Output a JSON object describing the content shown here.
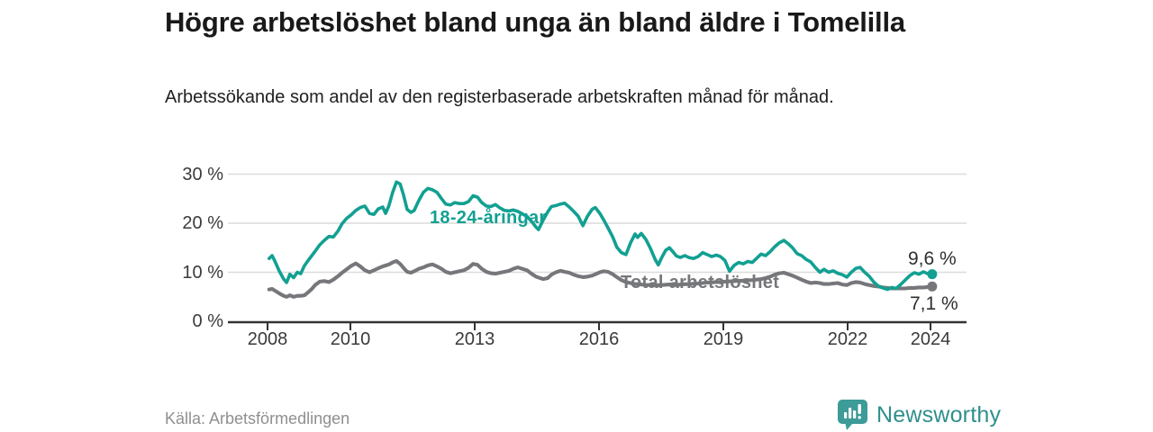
{
  "chart_data": {
    "type": "line",
    "title": "Högre arbetslöshet bland unga än bland äldre i Tomelilla",
    "subtitle": "Arbetssökande som andel av den registerbaserade arbetskraften månad för månad.",
    "source": "Källa: Arbetsförmedlingen",
    "grid": "horizontal",
    "legend": "inline-labels",
    "y_axis": {
      "unit": "%",
      "range": [
        0,
        31
      ],
      "tick_values": [
        0,
        10,
        20,
        30
      ],
      "tick_labels": [
        "0 %",
        "10 %",
        "20 %",
        "30 %"
      ]
    },
    "x_axis": {
      "range": [
        2007.9,
        2024.9
      ],
      "ticks": [
        2008,
        2010,
        2013,
        2016,
        2019,
        2022,
        2024
      ]
    },
    "style": {
      "grid_color": "#dcdcdc",
      "axis_color": "#333333",
      "text_color": "#3a3a3a"
    },
    "series": [
      {
        "name": "18-24-åringar",
        "color": "#12a092",
        "end_value": 9.6,
        "end_label": "9,6 %",
        "points": [
          [
            2008.04,
            12.8
          ],
          [
            2008.11,
            13.4
          ],
          [
            2008.17,
            12.4
          ],
          [
            2008.28,
            10.3
          ],
          [
            2008.39,
            8.6
          ],
          [
            2008.46,
            7.9
          ],
          [
            2008.54,
            9.6
          ],
          [
            2008.63,
            8.9
          ],
          [
            2008.72,
            10.0
          ],
          [
            2008.8,
            9.7
          ],
          [
            2008.89,
            11.3
          ],
          [
            2008.98,
            12.4
          ],
          [
            2009.07,
            13.4
          ],
          [
            2009.15,
            14.3
          ],
          [
            2009.26,
            15.6
          ],
          [
            2009.37,
            16.5
          ],
          [
            2009.48,
            17.3
          ],
          [
            2009.59,
            17.2
          ],
          [
            2009.7,
            18.4
          ],
          [
            2009.8,
            19.9
          ],
          [
            2009.91,
            21.0
          ],
          [
            2010.02,
            21.7
          ],
          [
            2010.13,
            22.6
          ],
          [
            2010.24,
            23.2
          ],
          [
            2010.35,
            23.5
          ],
          [
            2010.46,
            22.0
          ],
          [
            2010.57,
            21.8
          ],
          [
            2010.67,
            22.9
          ],
          [
            2010.78,
            23.3
          ],
          [
            2010.85,
            22.0
          ],
          [
            2010.93,
            23.6
          ],
          [
            2011.02,
            26.3
          ],
          [
            2011.11,
            28.4
          ],
          [
            2011.2,
            28.0
          ],
          [
            2011.28,
            25.8
          ],
          [
            2011.37,
            22.8
          ],
          [
            2011.46,
            22.2
          ],
          [
            2011.54,
            22.6
          ],
          [
            2011.65,
            24.6
          ],
          [
            2011.76,
            26.3
          ],
          [
            2011.87,
            27.1
          ],
          [
            2011.98,
            26.8
          ],
          [
            2012.09,
            26.3
          ],
          [
            2012.2,
            25.0
          ],
          [
            2012.3,
            23.9
          ],
          [
            2012.41,
            23.7
          ],
          [
            2012.52,
            24.2
          ],
          [
            2012.63,
            24.0
          ],
          [
            2012.74,
            24.0
          ],
          [
            2012.85,
            24.4
          ],
          [
            2012.96,
            25.6
          ],
          [
            2013.07,
            25.3
          ],
          [
            2013.17,
            24.2
          ],
          [
            2013.28,
            23.5
          ],
          [
            2013.39,
            23.4
          ],
          [
            2013.5,
            23.8
          ],
          [
            2013.61,
            23.1
          ],
          [
            2013.72,
            22.6
          ],
          [
            2013.83,
            22.5
          ],
          [
            2013.93,
            22.7
          ],
          [
            2014.04,
            22.4
          ],
          [
            2014.15,
            21.9
          ],
          [
            2014.26,
            21.4
          ],
          [
            2014.37,
            20.4
          ],
          [
            2014.48,
            19.2
          ],
          [
            2014.54,
            18.7
          ],
          [
            2014.65,
            20.6
          ],
          [
            2014.76,
            22.3
          ],
          [
            2014.85,
            23.4
          ],
          [
            2014.96,
            23.6
          ],
          [
            2015.07,
            23.9
          ],
          [
            2015.17,
            24.1
          ],
          [
            2015.28,
            23.3
          ],
          [
            2015.39,
            22.4
          ],
          [
            2015.5,
            21.4
          ],
          [
            2015.61,
            19.5
          ],
          [
            2015.72,
            21.4
          ],
          [
            2015.83,
            22.8
          ],
          [
            2015.91,
            23.2
          ],
          [
            2016.02,
            22.0
          ],
          [
            2016.11,
            20.7
          ],
          [
            2016.22,
            19.0
          ],
          [
            2016.33,
            17.2
          ],
          [
            2016.43,
            15.1
          ],
          [
            2016.54,
            14.0
          ],
          [
            2016.65,
            13.6
          ],
          [
            2016.76,
            16.0
          ],
          [
            2016.87,
            17.8
          ],
          [
            2016.93,
            17.1
          ],
          [
            2017.02,
            17.9
          ],
          [
            2017.13,
            16.7
          ],
          [
            2017.24,
            14.9
          ],
          [
            2017.35,
            12.7
          ],
          [
            2017.43,
            11.5
          ],
          [
            2017.52,
            13.1
          ],
          [
            2017.61,
            14.5
          ],
          [
            2017.7,
            15.0
          ],
          [
            2017.78,
            14.2
          ],
          [
            2017.87,
            13.3
          ],
          [
            2017.96,
            13.0
          ],
          [
            2018.07,
            13.4
          ],
          [
            2018.17,
            13.0
          ],
          [
            2018.28,
            12.8
          ],
          [
            2018.39,
            13.2
          ],
          [
            2018.5,
            14.0
          ],
          [
            2018.61,
            13.6
          ],
          [
            2018.72,
            13.2
          ],
          [
            2018.83,
            13.5
          ],
          [
            2018.93,
            13.2
          ],
          [
            2019.04,
            12.4
          ],
          [
            2019.15,
            10.2
          ],
          [
            2019.26,
            11.4
          ],
          [
            2019.37,
            12.0
          ],
          [
            2019.48,
            11.7
          ],
          [
            2019.59,
            12.2
          ],
          [
            2019.7,
            12.0
          ],
          [
            2019.8,
            12.8
          ],
          [
            2019.91,
            13.7
          ],
          [
            2020.02,
            13.4
          ],
          [
            2020.13,
            14.2
          ],
          [
            2020.24,
            15.2
          ],
          [
            2020.35,
            16.0
          ],
          [
            2020.46,
            16.5
          ],
          [
            2020.57,
            15.8
          ],
          [
            2020.67,
            15.0
          ],
          [
            2020.78,
            13.8
          ],
          [
            2020.89,
            13.4
          ],
          [
            2021.0,
            12.6
          ],
          [
            2021.11,
            12.1
          ],
          [
            2021.22,
            11.0
          ],
          [
            2021.33,
            10.0
          ],
          [
            2021.43,
            10.6
          ],
          [
            2021.54,
            10.0
          ],
          [
            2021.65,
            10.3
          ],
          [
            2021.76,
            9.8
          ],
          [
            2021.87,
            9.5
          ],
          [
            2021.98,
            9.0
          ],
          [
            2022.09,
            10.0
          ],
          [
            2022.2,
            10.8
          ],
          [
            2022.3,
            11.0
          ],
          [
            2022.41,
            10.0
          ],
          [
            2022.52,
            9.2
          ],
          [
            2022.63,
            8.0
          ],
          [
            2022.74,
            7.2
          ],
          [
            2022.85,
            6.8
          ],
          [
            2022.96,
            6.5
          ],
          [
            2023.07,
            6.9
          ],
          [
            2023.17,
            6.7
          ],
          [
            2023.28,
            7.5
          ],
          [
            2023.39,
            8.4
          ],
          [
            2023.5,
            9.3
          ],
          [
            2023.61,
            9.9
          ],
          [
            2023.72,
            9.6
          ],
          [
            2023.83,
            10.1
          ],
          [
            2023.93,
            9.7
          ],
          [
            2024.04,
            9.6
          ]
        ]
      },
      {
        "name": "Total arbetslöshet",
        "color": "#76777b",
        "end_value": 7.1,
        "end_label": "7,1 %",
        "points": [
          [
            2008.04,
            6.5
          ],
          [
            2008.11,
            6.6
          ],
          [
            2008.17,
            6.3
          ],
          [
            2008.28,
            5.7
          ],
          [
            2008.39,
            5.2
          ],
          [
            2008.46,
            5.0
          ],
          [
            2008.54,
            5.3
          ],
          [
            2008.63,
            5.0
          ],
          [
            2008.72,
            5.2
          ],
          [
            2008.8,
            5.2
          ],
          [
            2008.89,
            5.3
          ],
          [
            2008.98,
            5.9
          ],
          [
            2009.07,
            6.6
          ],
          [
            2009.15,
            7.4
          ],
          [
            2009.26,
            8.1
          ],
          [
            2009.37,
            8.2
          ],
          [
            2009.48,
            8.0
          ],
          [
            2009.59,
            8.5
          ],
          [
            2009.7,
            9.2
          ],
          [
            2009.8,
            9.9
          ],
          [
            2009.91,
            10.6
          ],
          [
            2010.02,
            11.3
          ],
          [
            2010.13,
            11.8
          ],
          [
            2010.24,
            11.2
          ],
          [
            2010.35,
            10.4
          ],
          [
            2010.46,
            10.0
          ],
          [
            2010.57,
            10.4
          ],
          [
            2010.67,
            10.8
          ],
          [
            2010.78,
            11.2
          ],
          [
            2010.93,
            11.6
          ],
          [
            2011.02,
            12.0
          ],
          [
            2011.11,
            12.3
          ],
          [
            2011.2,
            11.7
          ],
          [
            2011.28,
            10.9
          ],
          [
            2011.37,
            10.1
          ],
          [
            2011.46,
            9.9
          ],
          [
            2011.54,
            10.2
          ],
          [
            2011.65,
            10.7
          ],
          [
            2011.76,
            11.0
          ],
          [
            2011.87,
            11.4
          ],
          [
            2011.98,
            11.6
          ],
          [
            2012.09,
            11.2
          ],
          [
            2012.2,
            10.7
          ],
          [
            2012.3,
            10.1
          ],
          [
            2012.41,
            9.8
          ],
          [
            2012.52,
            10.0
          ],
          [
            2012.63,
            10.2
          ],
          [
            2012.74,
            10.4
          ],
          [
            2012.85,
            10.9
          ],
          [
            2012.96,
            11.7
          ],
          [
            2013.07,
            11.5
          ],
          [
            2013.17,
            10.7
          ],
          [
            2013.28,
            10.1
          ],
          [
            2013.39,
            9.8
          ],
          [
            2013.5,
            9.7
          ],
          [
            2013.61,
            9.9
          ],
          [
            2013.72,
            10.1
          ],
          [
            2013.83,
            10.3
          ],
          [
            2013.93,
            10.7
          ],
          [
            2014.04,
            11.0
          ],
          [
            2014.15,
            10.7
          ],
          [
            2014.26,
            10.4
          ],
          [
            2014.37,
            9.7
          ],
          [
            2014.48,
            9.1
          ],
          [
            2014.65,
            8.6
          ],
          [
            2014.76,
            8.8
          ],
          [
            2014.85,
            9.5
          ],
          [
            2014.96,
            10.0
          ],
          [
            2015.07,
            10.3
          ],
          [
            2015.17,
            10.1
          ],
          [
            2015.28,
            9.9
          ],
          [
            2015.39,
            9.5
          ],
          [
            2015.5,
            9.2
          ],
          [
            2015.61,
            9.0
          ],
          [
            2015.72,
            9.1
          ],
          [
            2015.83,
            9.3
          ],
          [
            2015.91,
            9.6
          ],
          [
            2016.02,
            10.0
          ],
          [
            2016.11,
            10.2
          ],
          [
            2016.22,
            10.1
          ],
          [
            2016.33,
            9.6
          ],
          [
            2016.43,
            9.0
          ],
          [
            2016.54,
            8.4
          ],
          [
            2016.65,
            8.0
          ],
          [
            2016.76,
            7.8
          ],
          [
            2016.87,
            7.6
          ],
          [
            2017.02,
            7.5
          ],
          [
            2017.13,
            7.4
          ],
          [
            2017.24,
            7.4
          ],
          [
            2017.35,
            7.3
          ],
          [
            2017.52,
            7.4
          ],
          [
            2017.7,
            7.5
          ],
          [
            2017.87,
            7.4
          ],
          [
            2017.96,
            7.5
          ],
          [
            2018.17,
            7.6
          ],
          [
            2018.39,
            7.7
          ],
          [
            2018.61,
            7.9
          ],
          [
            2018.83,
            8.0
          ],
          [
            2019.04,
            8.1
          ],
          [
            2019.26,
            8.2
          ],
          [
            2019.48,
            8.3
          ],
          [
            2019.7,
            8.4
          ],
          [
            2019.91,
            8.6
          ],
          [
            2020.02,
            8.8
          ],
          [
            2020.13,
            9.1
          ],
          [
            2020.24,
            9.5
          ],
          [
            2020.35,
            9.8
          ],
          [
            2020.46,
            9.9
          ],
          [
            2020.57,
            9.6
          ],
          [
            2020.67,
            9.3
          ],
          [
            2020.78,
            8.9
          ],
          [
            2020.89,
            8.5
          ],
          [
            2021.0,
            8.1
          ],
          [
            2021.11,
            7.8
          ],
          [
            2021.22,
            7.9
          ],
          [
            2021.33,
            7.8
          ],
          [
            2021.43,
            7.6
          ],
          [
            2021.54,
            7.6
          ],
          [
            2021.65,
            7.7
          ],
          [
            2021.76,
            7.8
          ],
          [
            2021.87,
            7.5
          ],
          [
            2021.98,
            7.4
          ],
          [
            2022.09,
            7.8
          ],
          [
            2022.2,
            8.0
          ],
          [
            2022.3,
            7.9
          ],
          [
            2022.41,
            7.6
          ],
          [
            2022.52,
            7.4
          ],
          [
            2022.63,
            7.2
          ],
          [
            2022.74,
            7.1
          ],
          [
            2022.85,
            6.9
          ],
          [
            2022.96,
            6.8
          ],
          [
            2023.07,
            6.7
          ],
          [
            2023.17,
            6.7
          ],
          [
            2023.28,
            6.7
          ],
          [
            2023.39,
            6.7
          ],
          [
            2023.5,
            6.8
          ],
          [
            2023.61,
            6.8
          ],
          [
            2023.72,
            6.9
          ],
          [
            2023.83,
            6.9
          ],
          [
            2023.93,
            7.0
          ],
          [
            2024.04,
            7.1
          ]
        ]
      }
    ]
  },
  "branding": {
    "name": "Newsworthy",
    "icon": "newsworthy-logo-icon",
    "color": "#2f8f8c",
    "icon_color": "#3d9b98"
  }
}
